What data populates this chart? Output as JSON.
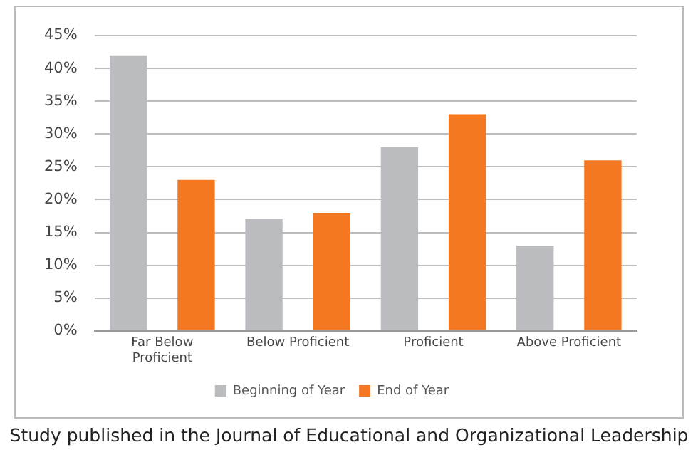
{
  "chart_data": {
    "type": "bar",
    "categories": [
      "Far Below Proficient",
      "Below Proficient",
      "Proficient",
      "Above Proficient"
    ],
    "series": [
      {
        "name": "Beginning of Year",
        "color": "#bbbcbf",
        "values": [
          42,
          17,
          28,
          13
        ]
      },
      {
        "name": "End of Year",
        "color": "#f47721",
        "values": [
          23,
          18,
          33,
          26
        ]
      }
    ],
    "ylim": [
      0,
      45
    ],
    "yticks": [
      {
        "value": 0,
        "label": "0%"
      },
      {
        "value": 5,
        "label": "5%"
      },
      {
        "value": 10,
        "label": "10%"
      },
      {
        "value": 15,
        "label": "15%"
      },
      {
        "value": 20,
        "label": "20%"
      },
      {
        "value": 25,
        "label": "25%"
      },
      {
        "value": 30,
        "label": "30%"
      },
      {
        "value": 35,
        "label": "35%"
      },
      {
        "value": 40,
        "label": "40%"
      },
      {
        "value": 45,
        "label": "45%"
      }
    ],
    "grid": "y",
    "legend": "bottom",
    "annotations": [
      "Study published in the Journal of Educational and Organizational Leadership"
    ]
  }
}
